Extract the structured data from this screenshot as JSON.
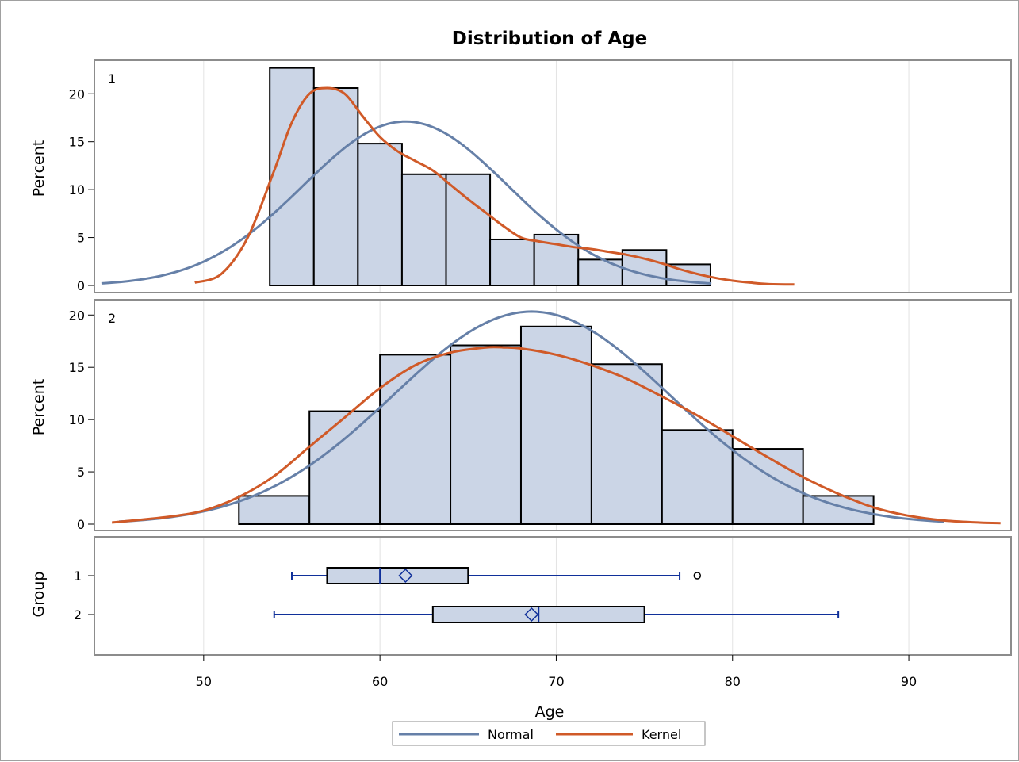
{
  "chart_data": {
    "type": "histogram",
    "title": "Distribution of Age",
    "xlabel": "Age",
    "xlim": [
      43.8,
      95.8
    ],
    "x_ticks": [
      50,
      60,
      70,
      80,
      90
    ],
    "grid": "vertical",
    "legend": {
      "placement": "bottom-center",
      "entries": [
        {
          "name": "Normal",
          "color": "#6680a8"
        },
        {
          "name": "Kernel",
          "color": "#d05a28"
        }
      ]
    },
    "colors": {
      "bar_fill": "#cbd5e6",
      "bar_stroke": "#000000",
      "normal": "#6680a8",
      "kernel": "#d05a28",
      "box_whisker": "#10309a",
      "gridline": "#e2e2e2",
      "panel_border": "#8c8c8c"
    },
    "panels": [
      {
        "label": "1",
        "ylabel": "Percent",
        "ylim": [
          0,
          23
        ],
        "y_ticks": [
          0,
          5,
          10,
          15,
          20
        ],
        "bins": [
          {
            "start": 53.75,
            "end": 56.25,
            "percent": 22.7
          },
          {
            "start": 56.25,
            "end": 58.75,
            "percent": 20.6
          },
          {
            "start": 58.75,
            "end": 61.25,
            "percent": 14.8
          },
          {
            "start": 61.25,
            "end": 63.75,
            "percent": 11.6
          },
          {
            "start": 63.75,
            "end": 66.25,
            "percent": 11.6
          },
          {
            "start": 66.25,
            "end": 68.75,
            "percent": 4.8
          },
          {
            "start": 68.75,
            "end": 71.25,
            "percent": 5.3
          },
          {
            "start": 71.25,
            "end": 73.75,
            "percent": 2.7
          },
          {
            "start": 73.75,
            "end": 76.25,
            "percent": 3.7
          },
          {
            "start": 76.25,
            "end": 78.75,
            "percent": 2.2
          }
        ],
        "normal": {
          "mean": 61.45,
          "sd": 5.83,
          "bin_width": 2.5,
          "x_range": [
            44.2,
            78.8
          ]
        },
        "kernel": {
          "x": [
            49.5,
            51,
            52.5,
            54,
            55,
            56,
            57,
            58,
            59,
            60,
            61,
            62,
            63,
            64,
            65,
            66,
            67,
            68,
            69,
            70,
            71,
            72,
            73,
            74,
            75,
            76,
            77,
            78,
            79,
            80,
            81,
            82,
            83.5
          ],
          "y": [
            0.3,
            1.2,
            5,
            12,
            17,
            20,
            20.6,
            20,
            17.7,
            15.5,
            14,
            13,
            12,
            10.5,
            9,
            7.6,
            6.2,
            5,
            4.6,
            4.3,
            4,
            3.8,
            3.5,
            3.2,
            2.8,
            2.3,
            1.7,
            1.2,
            0.8,
            0.5,
            0.3,
            0.15,
            0.1
          ]
        }
      },
      {
        "label": "2",
        "ylabel": "Percent",
        "ylim": [
          0,
          20.4
        ],
        "y_ticks": [
          0,
          5,
          10,
          15,
          20
        ],
        "bins": [
          {
            "start": 52,
            "end": 56,
            "percent": 2.7
          },
          {
            "start": 56,
            "end": 60,
            "percent": 10.8
          },
          {
            "start": 60,
            "end": 64,
            "percent": 16.2
          },
          {
            "start": 64,
            "end": 68,
            "percent": 17.1
          },
          {
            "start": 68,
            "end": 72,
            "percent": 18.9
          },
          {
            "start": 72,
            "end": 76,
            "percent": 15.3
          },
          {
            "start": 76,
            "end": 80,
            "percent": 9.0
          },
          {
            "start": 80,
            "end": 84,
            "percent": 7.2
          },
          {
            "start": 84,
            "end": 88,
            "percent": 2.7
          }
        ],
        "normal": {
          "mean": 68.6,
          "sd": 7.85,
          "bin_width": 4,
          "x_range": [
            45.2,
            92.0
          ]
        },
        "kernel": {
          "x": [
            44.8,
            48,
            50,
            52,
            54,
            56,
            58,
            60,
            62,
            64,
            66,
            67,
            68,
            70,
            72,
            74,
            76,
            78,
            80,
            82,
            84,
            86,
            88,
            90,
            92,
            94,
            95.2
          ],
          "y": [
            0.15,
            0.7,
            1.3,
            2.6,
            4.6,
            7.4,
            10.2,
            13,
            15.2,
            16.4,
            16.9,
            16.9,
            16.8,
            16.2,
            15.2,
            13.9,
            12.2,
            10.4,
            8.4,
            6.4,
            4.5,
            2.9,
            1.6,
            0.8,
            0.35,
            0.15,
            0.1
          ]
        }
      }
    ],
    "boxplot": {
      "ylabel": "Group",
      "groups": [
        {
          "label": "1",
          "whisker_low": 55,
          "q1": 57,
          "median": 60,
          "mean": 61.45,
          "q3": 65,
          "whisker_high": 77,
          "outliers": [
            78
          ]
        },
        {
          "label": "2",
          "whisker_low": 54,
          "q1": 63,
          "median": 69,
          "mean": 68.6,
          "q3": 75,
          "whisker_high": 86,
          "outliers": []
        }
      ]
    }
  }
}
